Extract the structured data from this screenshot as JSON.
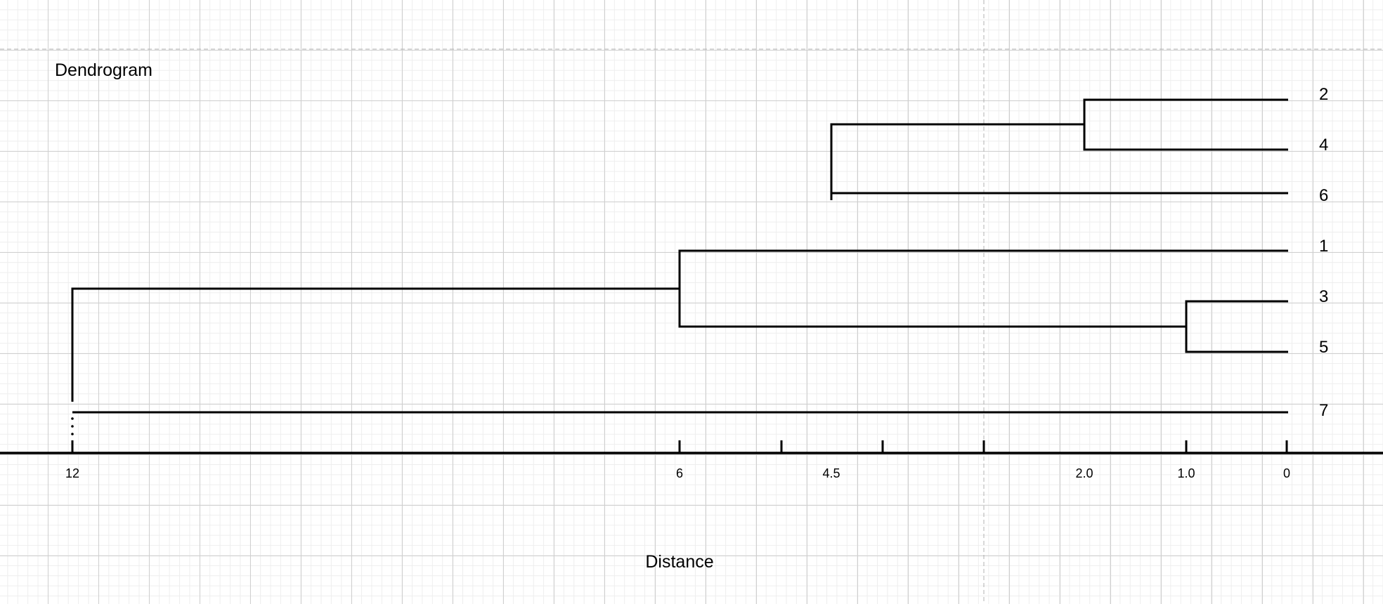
{
  "title": "Dendrogram",
  "axis_label": "Distance",
  "leaves": [
    "2",
    "4",
    "6",
    "1",
    "3",
    "5",
    "7"
  ],
  "axis_ticks": [
    {
      "value": 12,
      "label": "12"
    },
    {
      "value": 6,
      "label": "6"
    },
    {
      "value": 5,
      "label": ""
    },
    {
      "value": 4.5,
      "label": "4.5"
    },
    {
      "value": 4,
      "label": ""
    },
    {
      "value": 3,
      "label": ""
    },
    {
      "value": 2,
      "label": "2.0"
    },
    {
      "value": 1,
      "label": "1.0"
    },
    {
      "value": 0,
      "label": "0"
    }
  ],
  "merges": [
    {
      "children": [
        "2",
        "4"
      ],
      "distance": 2.0
    },
    {
      "children": [
        "(2,4)",
        "6"
      ],
      "distance": 4.5
    },
    {
      "children": [
        "3",
        "5"
      ],
      "distance": 1.0
    },
    {
      "children": [
        "1",
        "(3,5)"
      ],
      "distance": 6
    },
    {
      "children": [
        "(1,(3,5))",
        "7"
      ],
      "distance": 12
    }
  ],
  "colors": {
    "lines": "#000000",
    "grid": "#cfcfcf",
    "background": "#ffffff"
  }
}
